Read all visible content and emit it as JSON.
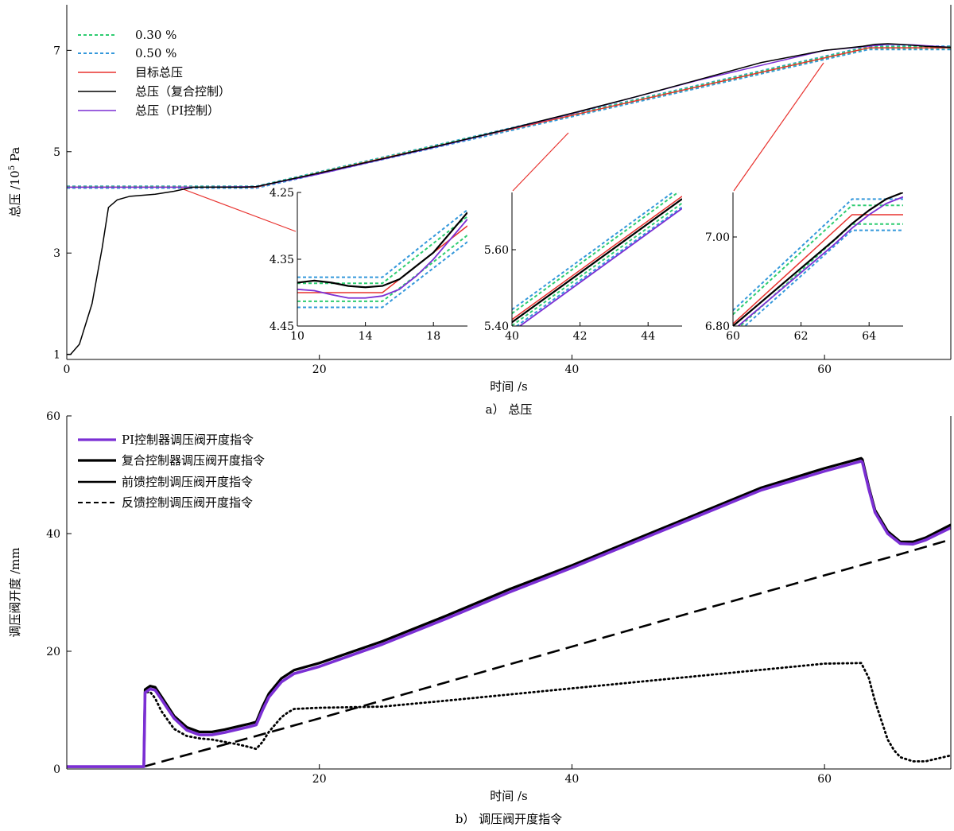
{
  "chart_data": [
    {
      "type": "line",
      "caption": "a） 总压",
      "xlabel": "时间 /s",
      "ylabel_main": "总压 /10",
      "ylabel_sup": "5",
      "ylabel_unit": " Pa",
      "xlim": [
        0,
        70
      ],
      "ylim": [
        0.9,
        7.9
      ],
      "xticks": [
        0,
        20,
        40,
        60
      ],
      "yticks": [
        1,
        3,
        5,
        7
      ],
      "legend_position": "top-left",
      "colors": {
        "band30": "#2ecc71",
        "band50": "#3498db",
        "target": "#e8322e",
        "composite": "#000000",
        "pi": "#7b2fd4"
      },
      "series": [
        {
          "name": "0.30 %",
          "style": "dotted-green"
        },
        {
          "name": "0.50 %",
          "style": "dotted-blue"
        },
        {
          "name": "目标总压",
          "style": "red",
          "x": [
            0,
            15,
            63.5,
            70
          ],
          "y": [
            4.3,
            4.3,
            7.05,
            7.05
          ]
        },
        {
          "name": "总压（复合控制）",
          "style": "black",
          "x": [
            0,
            0.3,
            1,
            2,
            2.8,
            3.3,
            4,
            5,
            7,
            8.5,
            10,
            12,
            14,
            15,
            20,
            25,
            30,
            35,
            40,
            45,
            50,
            55,
            60,
            63,
            64,
            65,
            66,
            67,
            68,
            70
          ],
          "y": [
            1.0,
            1.0,
            1.2,
            2.0,
            3.1,
            3.9,
            4.05,
            4.12,
            4.16,
            4.22,
            4.3,
            4.3,
            4.3,
            4.31,
            4.58,
            4.86,
            5.15,
            5.45,
            5.76,
            6.08,
            6.42,
            6.76,
            7.0,
            7.08,
            7.12,
            7.13,
            7.12,
            7.1,
            7.08,
            7.06
          ]
        },
        {
          "name": "总压（PI控制）",
          "style": "purple",
          "x": [
            0,
            10,
            15,
            20,
            30,
            40,
            50,
            60,
            63,
            65,
            67,
            70
          ],
          "y": [
            4.3,
            4.3,
            4.31,
            4.56,
            5.14,
            5.75,
            6.41,
            7.0,
            7.07,
            7.12,
            7.11,
            7.06
          ]
        }
      ],
      "insets": [
        {
          "xlim": [
            10,
            20
          ],
          "ylim": [
            4.45,
            4.25
          ],
          "xticks": [
            10,
            14,
            18
          ],
          "yticks": [
            4.25,
            4.35,
            4.45
          ],
          "ytick_labels": [
            "4.25",
            "4.35",
            "4.45"
          ],
          "lines": [
            {
              "style": "band50",
              "x": [
                10,
                15,
                17.5,
                20
              ],
              "y": [
                4.377,
                4.377,
                4.326,
                4.276
              ]
            },
            {
              "style": "band30",
              "x": [
                10,
                15,
                17.5,
                20
              ],
              "y": [
                4.386,
                4.386,
                4.336,
                4.286
              ]
            },
            {
              "style": "band30",
              "x": [
                10,
                15,
                17.5,
                20
              ],
              "y": [
                4.413,
                4.413,
                4.364,
                4.314
              ]
            },
            {
              "style": "band50",
              "x": [
                10,
                15,
                17.5,
                20
              ],
              "y": [
                4.422,
                4.422,
                4.373,
                4.324
              ]
            },
            {
              "style": "target",
              "x": [
                10,
                15,
                17.5,
                20
              ],
              "y": [
                4.4,
                4.4,
                4.35,
                4.3
              ]
            },
            {
              "style": "composite",
              "x": [
                10,
                11,
                12,
                13,
                14,
                15,
                16,
                17,
                18,
                19,
                20
              ],
              "y": [
                4.385,
                4.382,
                4.385,
                4.39,
                4.392,
                4.39,
                4.38,
                4.36,
                4.34,
                4.31,
                4.28
              ]
            },
            {
              "style": "pi",
              "x": [
                10,
                11,
                12,
                13,
                14,
                15,
                16,
                17,
                18,
                19,
                20
              ],
              "y": [
                4.395,
                4.397,
                4.403,
                4.408,
                4.408,
                4.405,
                4.395,
                4.375,
                4.35,
                4.32,
                4.29
              ]
            }
          ]
        },
        {
          "xlim": [
            40,
            45
          ],
          "ylim": [
            5.4,
            5.75
          ],
          "xticks": [
            40,
            42,
            44
          ],
          "yticks": [
            5.4,
            5.6
          ],
          "ytick_labels": [
            "5.40",
            "5.60"
          ],
          "lines": [
            {
              "style": "band50",
              "x": [
                40,
                45
              ],
              "y": [
                5.443,
                5.768
              ]
            },
            {
              "style": "band30",
              "x": [
                40,
                45
              ],
              "y": [
                5.433,
                5.758
              ]
            },
            {
              "style": "band30",
              "x": [
                40,
                45
              ],
              "y": [
                5.401,
                5.722
              ]
            },
            {
              "style": "band50",
              "x": [
                40,
                45
              ],
              "y": [
                5.391,
                5.712
              ]
            },
            {
              "style": "target",
              "x": [
                40,
                45
              ],
              "y": [
                5.417,
                5.74
              ]
            },
            {
              "style": "composite",
              "x": [
                40,
                45
              ],
              "y": [
                5.41,
                5.733
              ]
            },
            {
              "style": "pi",
              "x": [
                40,
                45
              ],
              "y": [
                5.385,
                5.708
              ]
            }
          ]
        },
        {
          "xlim": [
            60,
            65
          ],
          "ylim": [
            6.8,
            7.1
          ],
          "xticks": [
            60,
            62,
            64
          ],
          "yticks": [
            6.8,
            7.0
          ],
          "ytick_labels": [
            "6.80",
            "7.00"
          ],
          "lines": [
            {
              "style": "band50",
              "x": [
                60,
                63.5,
                65
              ],
              "y": [
                6.835,
                7.085,
                7.085
              ]
            },
            {
              "style": "band30",
              "x": [
                60,
                63.5,
                65
              ],
              "y": [
                6.826,
                7.071,
                7.071
              ]
            },
            {
              "style": "band30",
              "x": [
                60,
                63.5,
                65
              ],
              "y": [
                6.785,
                7.029,
                7.029
              ]
            },
            {
              "style": "band50",
              "x": [
                60,
                63.5,
                65
              ],
              "y": [
                6.776,
                7.015,
                7.015
              ]
            },
            {
              "style": "target",
              "x": [
                60,
                63.5,
                65
              ],
              "y": [
                6.805,
                7.05,
                7.05
              ]
            },
            {
              "style": "composite",
              "x": [
                60,
                61,
                62,
                63,
                63.5,
                64,
                64.5,
                65
              ],
              "y": [
                6.8,
                6.865,
                6.93,
                6.995,
                7.03,
                7.06,
                7.085,
                7.1
              ]
            },
            {
              "style": "pi",
              "x": [
                60,
                61,
                62,
                63,
                63.5,
                64,
                64.5,
                65
              ],
              "y": [
                6.79,
                6.855,
                6.92,
                6.985,
                7.02,
                7.05,
                7.075,
                7.09
              ]
            }
          ]
        }
      ]
    },
    {
      "type": "line",
      "caption": "b） 调压阀开度指令",
      "xlabel": "时间 /s",
      "ylabel": "调压阀开度 /mm",
      "xlim": [
        0,
        70
      ],
      "ylim": [
        0,
        60
      ],
      "xticks": [
        20,
        40,
        60
      ],
      "yticks": [
        0,
        20,
        40,
        60
      ],
      "legend_position": "top-left",
      "series": [
        {
          "name": "PI控制器调压阀开度指令",
          "style": "purple",
          "x": [
            0,
            6.1,
            6.2,
            6.6,
            7.0,
            7.5,
            8.5,
            9.5,
            10.5,
            11.5,
            12.5,
            13.5,
            14.5,
            15.0,
            15.5,
            16.0,
            17.0,
            18.0,
            20.0,
            25.0,
            30.0,
            35.0,
            40.0,
            45.0,
            50.0,
            55.0,
            60.0,
            62.9,
            63.0,
            63.5,
            64.0,
            65.0,
            66.0,
            67.0,
            68.0,
            70.0
          ],
          "y": [
            0.4,
            0.4,
            13.0,
            13.6,
            13.4,
            11.8,
            8.6,
            6.6,
            5.8,
            5.8,
            6.2,
            6.7,
            7.2,
            7.5,
            10.0,
            12.2,
            14.8,
            16.2,
            17.4,
            21.2,
            25.5,
            30.0,
            34.2,
            38.6,
            43.0,
            47.4,
            50.6,
            52.3,
            52.1,
            47.6,
            43.6,
            40.0,
            38.3,
            38.2,
            38.9,
            41.0
          ]
        },
        {
          "name": "复合控制器调压阀开度指令",
          "style": "black-thick",
          "x": [
            0,
            6.1,
            6.2,
            6.6,
            7.0,
            7.5,
            8.5,
            9.5,
            10.5,
            11.5,
            12.5,
            13.5,
            14.5,
            15.0,
            15.5,
            16.0,
            17.0,
            18.0,
            20.0,
            25.0,
            30.0,
            35.0,
            40.0,
            45.0,
            50.0,
            55.0,
            60.0,
            62.9,
            63.0,
            63.5,
            64.0,
            65.0,
            66.0,
            67.0,
            68.0,
            70.0
          ],
          "y": [
            0.4,
            0.4,
            13.5,
            14.1,
            13.9,
            12.3,
            9.0,
            7.1,
            6.3,
            6.3,
            6.7,
            7.2,
            7.7,
            8.0,
            10.6,
            12.8,
            15.4,
            16.8,
            18.0,
            21.7,
            26.0,
            30.5,
            34.6,
            39.0,
            43.4,
            47.8,
            51.1,
            52.8,
            52.6,
            48.0,
            44.0,
            40.4,
            38.6,
            38.6,
            39.3,
            41.5
          ]
        },
        {
          "name": "前馈控制调压阀开度指令",
          "style": "dotted-black",
          "x": [
            0,
            6.1,
            6.2,
            6.6,
            7.0,
            7.5,
            8.5,
            9.5,
            10.5,
            11.5,
            12.5,
            13.5,
            14.5,
            15.0,
            15.5,
            16.0,
            17.0,
            17.5,
            18.0,
            20.0,
            25.0,
            30.0,
            40.0,
            50.0,
            60.0,
            62.9,
            63.0,
            63.5,
            64.0,
            65.0,
            65.5,
            66.0,
            67.0,
            68.0,
            69.0,
            70.0
          ],
          "y": [
            0.4,
            0.4,
            13.0,
            13.1,
            12.0,
            9.8,
            6.8,
            5.6,
            5.2,
            5.0,
            4.6,
            4.2,
            3.7,
            3.4,
            4.6,
            6.3,
            8.8,
            9.6,
            10.2,
            10.4,
            10.6,
            11.6,
            13.7,
            15.8,
            17.9,
            18.0,
            17.6,
            15.5,
            11.5,
            5.0,
            3.2,
            2.0,
            1.3,
            1.3,
            1.8,
            2.3
          ]
        },
        {
          "name": "反馈控制调压阀开度指令",
          "style": "dashed-black",
          "x": [
            0,
            6.1,
            10,
            15,
            20,
            30,
            40,
            50,
            60,
            63,
            66,
            70
          ],
          "y": [
            0.4,
            0.4,
            2.7,
            5.6,
            8.6,
            14.7,
            20.8,
            26.9,
            32.9,
            34.7,
            36.5,
            39.0
          ]
        }
      ]
    }
  ]
}
